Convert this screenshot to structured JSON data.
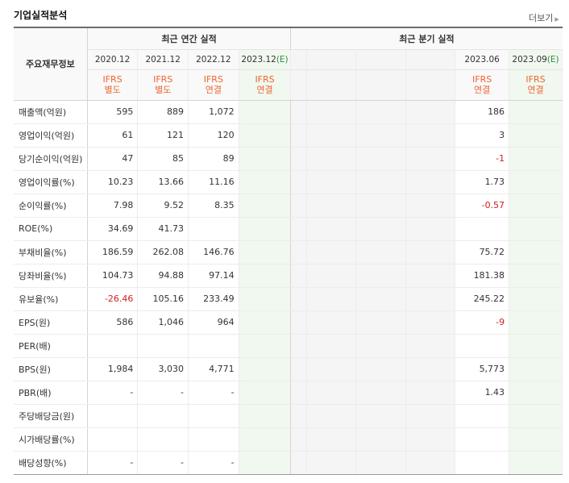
{
  "title": "기업실적분석",
  "more_label": "더보기",
  "row_header": "주요재무정보",
  "groups": {
    "annual": "최근 연간 실적",
    "quarterly": "최근 분기 실적"
  },
  "annual_periods": [
    "2020.12",
    "2021.12",
    "2022.12",
    "2023.12"
  ],
  "annual_estimate_mark": "(E)",
  "quarter_periods": [
    "",
    "",
    "",
    "",
    "2023.06",
    "2023.09"
  ],
  "quarter_estimate_mark": "(E)",
  "annual_std": [
    [
      "IFRS",
      "별도"
    ],
    [
      "IFRS",
      "별도"
    ],
    [
      "IFRS",
      "연결"
    ],
    [
      "IFRS",
      "연결"
    ]
  ],
  "quarter_std": [
    [
      "",
      ""
    ],
    [
      "",
      ""
    ],
    [
      "",
      ""
    ],
    [
      "",
      ""
    ],
    [
      "IFRS",
      "연결"
    ],
    [
      "IFRS",
      "연결"
    ]
  ],
  "rows": [
    {
      "label": "매출액(억원)",
      "annual": [
        "595",
        "889",
        "1,072",
        ""
      ],
      "quarter": [
        "",
        "",
        "",
        "",
        "186",
        ""
      ]
    },
    {
      "label": "영업이익(억원)",
      "annual": [
        "61",
        "121",
        "120",
        ""
      ],
      "quarter": [
        "",
        "",
        "",
        "",
        "3",
        ""
      ]
    },
    {
      "label": "당기순이익(억원)",
      "annual": [
        "47",
        "85",
        "89",
        ""
      ],
      "quarter": [
        "",
        "",
        "",
        "",
        "-1",
        ""
      ]
    },
    {
      "label": "영업이익률(%)",
      "annual": [
        "10.23",
        "13.66",
        "11.16",
        ""
      ],
      "quarter": [
        "",
        "",
        "",
        "",
        "1.73",
        ""
      ]
    },
    {
      "label": "순이익률(%)",
      "annual": [
        "7.98",
        "9.52",
        "8.35",
        ""
      ],
      "quarter": [
        "",
        "",
        "",
        "",
        "-0.57",
        ""
      ]
    },
    {
      "label": "ROE(%)",
      "annual": [
        "34.69",
        "41.73",
        "",
        ""
      ],
      "quarter": [
        "",
        "",
        "",
        "",
        "",
        ""
      ]
    },
    {
      "label": "부채비율(%)",
      "annual": [
        "186.59",
        "262.08",
        "146.76",
        ""
      ],
      "quarter": [
        "",
        "",
        "",
        "",
        "75.72",
        ""
      ]
    },
    {
      "label": "당좌비율(%)",
      "annual": [
        "104.73",
        "94.88",
        "97.14",
        ""
      ],
      "quarter": [
        "",
        "",
        "",
        "",
        "181.38",
        ""
      ]
    },
    {
      "label": "유보율(%)",
      "annual": [
        "-26.46",
        "105.16",
        "233.49",
        ""
      ],
      "quarter": [
        "",
        "",
        "",
        "",
        "245.22",
        ""
      ]
    },
    {
      "label": "EPS(원)",
      "annual": [
        "586",
        "1,046",
        "964",
        ""
      ],
      "quarter": [
        "",
        "",
        "",
        "",
        "-9",
        ""
      ]
    },
    {
      "label": "PER(배)",
      "annual": [
        "",
        "",
        "",
        ""
      ],
      "quarter": [
        "",
        "",
        "",
        "",
        "",
        ""
      ]
    },
    {
      "label": "BPS(원)",
      "annual": [
        "1,984",
        "3,030",
        "4,771",
        ""
      ],
      "quarter": [
        "",
        "",
        "",
        "",
        "5,773",
        ""
      ]
    },
    {
      "label": "PBR(배)",
      "annual": [
        "-",
        "-",
        "-",
        ""
      ],
      "quarter": [
        "",
        "",
        "",
        "",
        "1.43",
        ""
      ]
    },
    {
      "label": "주당배당금(원)",
      "annual": [
        "",
        "",
        "",
        ""
      ],
      "quarter": [
        "",
        "",
        "",
        "",
        "",
        ""
      ]
    },
    {
      "label": "시가배당률(%)",
      "annual": [
        "",
        "",
        "",
        ""
      ],
      "quarter": [
        "",
        "",
        "",
        "",
        "",
        ""
      ]
    },
    {
      "label": "배당성향(%)",
      "annual": [
        "-",
        "-",
        "-",
        ""
      ],
      "quarter": [
        "",
        "",
        "",
        "",
        "",
        ""
      ]
    }
  ]
}
